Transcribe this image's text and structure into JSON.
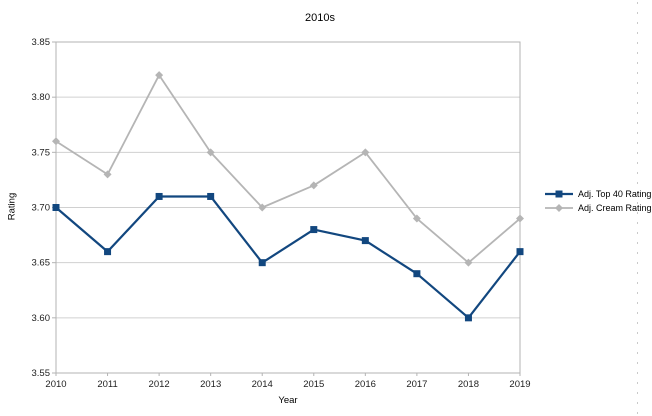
{
  "title": "2010s",
  "chart_data": {
    "type": "line",
    "title": "2010s",
    "xlabel": "Year",
    "ylabel": "Rating",
    "x": [
      "2010",
      "2011",
      "2012",
      "2013",
      "2014",
      "2015",
      "2016",
      "2017",
      "2018",
      "2019"
    ],
    "series": [
      {
        "name": "Adj. Top 40 Rating",
        "color": "#12477f",
        "marker": "square",
        "values": [
          3.7,
          3.66,
          3.71,
          3.71,
          3.65,
          3.68,
          3.67,
          3.64,
          3.6,
          3.66
        ]
      },
      {
        "name": "Adj. Cream Rating",
        "color": "#b5b5b5",
        "marker": "diamond",
        "values": [
          3.76,
          3.73,
          3.82,
          3.75,
          3.7,
          3.72,
          3.75,
          3.69,
          3.65,
          3.69
        ]
      }
    ],
    "ylim": [
      3.55,
      3.85
    ],
    "y_ticks": [
      3.55,
      3.6,
      3.65,
      3.7,
      3.75,
      3.8,
      3.85
    ],
    "y_tick_format_decimals": 2,
    "grid": true,
    "legend_position": "right"
  },
  "colors": {
    "frame": "#b3b3b3",
    "gridline": "#d0d0d0",
    "tick": "#b3b3b3",
    "text": "#222222",
    "selection_dash": "#c9c9c9",
    "background": "#ffffff"
  }
}
